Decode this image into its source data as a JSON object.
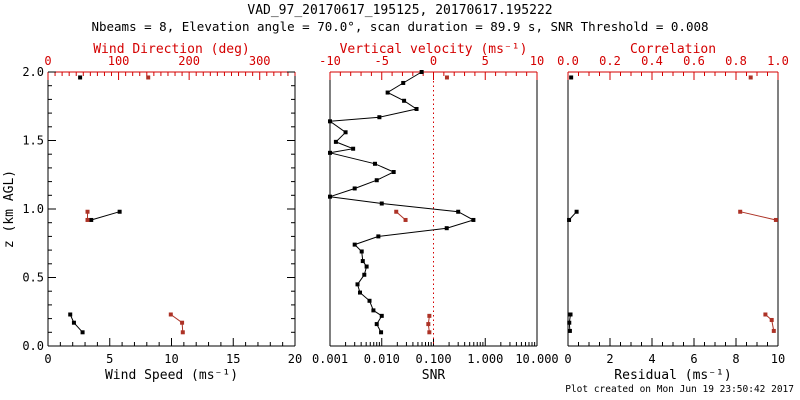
{
  "title": "VAD_97_20170617_195125, 20170617.195222",
  "subtitle": "Nbeams = 8, Elevation angle = 70.0°, scan duration = 89.9 s, SNR Threshold = 0.008",
  "footer": "Plot created on Mon Jun 19 23:50:42 2017",
  "colors": {
    "axis_red": "#d40000",
    "data_red": "#ad3226",
    "black": "#000000",
    "background": "#ffffff"
  },
  "chart_data": {
    "type": "line",
    "layout": "three-panel vertical profile, shared y axis",
    "y_axis": {
      "label": "z (km AGL)",
      "range": [
        0.0,
        2.0
      ],
      "ticks": [
        0.0,
        0.5,
        1.0,
        1.5,
        2.0
      ],
      "tick_labels": [
        "0.0",
        "0.5",
        "1.0",
        "1.5",
        "2.0"
      ],
      "minor_step": 0.1
    },
    "panels": [
      {
        "name": "wind",
        "bottom_axis": {
          "label": "Wind Speed (ms⁻¹)",
          "color": "black",
          "scale": "linear",
          "range": [
            0,
            20
          ],
          "ticks": [
            0,
            5,
            10,
            15,
            20
          ],
          "tick_labels": [
            "0",
            "5",
            "10",
            "15",
            "20"
          ],
          "minor_step": 1
        },
        "top_axis": {
          "label": "Wind Direction (deg)",
          "color": "red",
          "scale": "linear",
          "range": [
            0,
            350
          ],
          "ticks": [
            0,
            100,
            200,
            300
          ],
          "tick_labels": [
            "0",
            "100",
            "200",
            "300"
          ],
          "minor_step": 10
        },
        "series": [
          {
            "name": "wind-speed",
            "axis": "bottom",
            "color": "black",
            "points": [
              [
                1.96,
                2.6
              ],
              [
                0.98,
                5.8
              ],
              [
                0.92,
                3.5
              ],
              [
                0.23,
                1.8
              ],
              [
                0.17,
                2.1
              ],
              [
                0.1,
                2.8
              ]
            ]
          },
          {
            "name": "wind-direction",
            "axis": "top",
            "color": "red",
            "points": [
              [
                1.96,
                142
              ],
              [
                0.98,
                56
              ],
              [
                0.92,
                56
              ],
              [
                0.23,
                174
              ],
              [
                0.17,
                190
              ],
              [
                0.1,
                191
              ]
            ]
          }
        ]
      },
      {
        "name": "snr",
        "bottom_axis": {
          "label": "SNR",
          "color": "black",
          "scale": "log",
          "range": [
            0.001,
            10
          ],
          "ticks": [
            0.001,
            0.01,
            0.1,
            1,
            10
          ],
          "tick_labels": [
            "0.001",
            "0.010",
            "0.100",
            "1.000",
            "10.000"
          ]
        },
        "top_axis": {
          "label": "Vertical velocity (ms⁻¹)",
          "color": "red",
          "scale": "linear",
          "range": [
            -10,
            10
          ],
          "ticks": [
            -10,
            -5,
            0,
            5,
            10
          ],
          "tick_labels": [
            "-10",
            "-5",
            "0",
            "5",
            "10"
          ],
          "minor_step": 1,
          "zero_reference_line": true
        },
        "series": [
          {
            "name": "snr-profile",
            "axis": "bottom",
            "color": "black",
            "points": [
              [
                2.0,
                0.059
              ],
              [
                1.92,
                0.026
              ],
              [
                1.85,
                0.013
              ],
              [
                1.79,
                0.027
              ],
              [
                1.73,
                0.047
              ],
              [
                1.67,
                0.009
              ],
              [
                1.64,
                0.001
              ],
              [
                1.56,
                0.002
              ],
              [
                1.49,
                0.0013
              ],
              [
                1.44,
                0.0028
              ],
              [
                1.41,
                0.001
              ],
              [
                1.33,
                0.0074
              ],
              [
                1.27,
                0.017
              ],
              [
                1.21,
                0.008
              ],
              [
                1.15,
                0.003
              ],
              [
                1.09,
                0.001
              ],
              [
                1.04,
                0.01
              ],
              [
                0.98,
                0.3
              ],
              [
                0.92,
                0.59
              ],
              [
                0.86,
                0.18
              ],
              [
                0.8,
                0.0086
              ],
              [
                0.74,
                0.003
              ],
              [
                0.69,
                0.0041
              ],
              [
                0.62,
                0.0043
              ],
              [
                0.58,
                0.0051
              ],
              [
                0.52,
                0.0046
              ],
              [
                0.45,
                0.0034
              ],
              [
                0.39,
                0.0038
              ],
              [
                0.33,
                0.0058
              ],
              [
                0.26,
                0.0069
              ],
              [
                0.22,
                0.01
              ],
              [
                0.16,
                0.008
              ],
              [
                0.1,
                0.0097
              ]
            ]
          },
          {
            "name": "vertical-velocity",
            "axis": "top",
            "color": "red",
            "points": [
              [
                1.96,
                1.3
              ],
              [
                0.98,
                -3.6
              ],
              [
                0.92,
                -2.7
              ],
              [
                0.22,
                -0.4
              ],
              [
                0.16,
                -0.5
              ],
              [
                0.1,
                -0.4
              ]
            ]
          }
        ]
      },
      {
        "name": "residual",
        "bottom_axis": {
          "label": "Residual (ms⁻¹)",
          "color": "black",
          "scale": "linear",
          "range": [
            0,
            10
          ],
          "ticks": [
            0,
            2,
            4,
            6,
            8,
            10
          ],
          "tick_labels": [
            "0",
            "2",
            "4",
            "6",
            "8",
            "10"
          ],
          "minor_step": 0.5
        },
        "top_axis": {
          "label": "Correlation",
          "color": "red",
          "scale": "linear",
          "range": [
            0,
            1
          ],
          "ticks": [
            0,
            0.2,
            0.4,
            0.6,
            0.8,
            1
          ],
          "tick_labels": [
            "0.0",
            "0.2",
            "0.4",
            "0.6",
            "0.8",
            "1.0"
          ],
          "minor_step": 0.05
        },
        "series": [
          {
            "name": "residual",
            "axis": "bottom",
            "color": "black",
            "points": [
              [
                1.96,
                0.15
              ],
              [
                0.98,
                0.41
              ],
              [
                0.92,
                0.05
              ],
              [
                0.23,
                0.12
              ],
              [
                0.17,
                0.06
              ],
              [
                0.11,
                0.09
              ]
            ]
          },
          {
            "name": "correlation",
            "axis": "top",
            "color": "red",
            "points": [
              [
                1.96,
                0.87
              ],
              [
                0.98,
                0.82
              ],
              [
                0.92,
                0.99
              ],
              [
                0.23,
                0.94
              ],
              [
                0.19,
                0.97
              ],
              [
                0.11,
                0.98
              ]
            ]
          }
        ]
      }
    ]
  }
}
